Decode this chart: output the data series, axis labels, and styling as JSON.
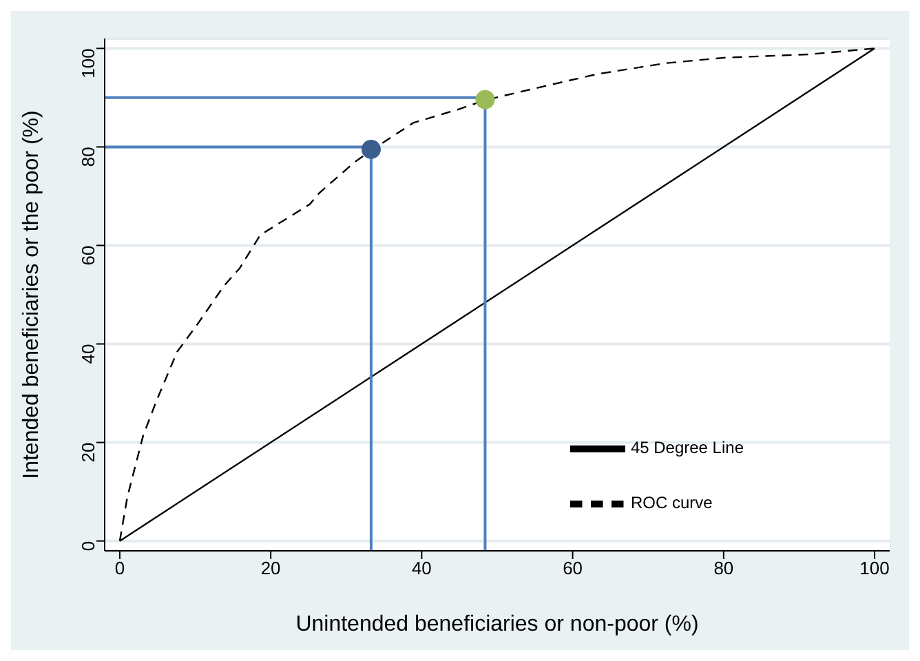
{
  "chart_data": {
    "type": "line",
    "xlabel": "Unintended beneficiaries or non-poor (%)",
    "ylabel": "Intended beneficiaries or the poor (%)",
    "xlim": [
      -2,
      102
    ],
    "ylim": [
      -2,
      102
    ],
    "xticks": [
      0,
      20,
      40,
      60,
      80,
      100
    ],
    "yticks": [
      0,
      20,
      40,
      60,
      80,
      100
    ],
    "grid": "y",
    "legend": "bottom right",
    "series": [
      {
        "name": "ROC curve",
        "color": "#000000",
        "line_style": "dashed",
        "x": [
          0,
          1,
          3.1,
          4.9,
          7.6,
          10.2,
          13.8,
          15.9,
          18.6,
          25.2,
          26.4,
          31.1,
          33.3,
          38.9,
          44.8,
          48.4,
          55.6,
          63.3,
          72.3,
          80,
          91.3,
          100
        ],
        "values": [
          0,
          8.9,
          21.4,
          28.6,
          38.4,
          43.8,
          51.8,
          55.4,
          62.1,
          68.4,
          70.6,
          76.9,
          79.3,
          84.9,
          87.6,
          89.5,
          92.1,
          94.8,
          97,
          98.1,
          98.8,
          100
        ]
      },
      {
        "name": "45 Degree Line",
        "color": "#000000",
        "line_style": "solid",
        "x": [
          0,
          100
        ],
        "values": [
          0,
          100
        ]
      },
      {
        "color": "#4f81bd",
        "line_style": "solid",
        "x": [
          -2,
          33.3
        ],
        "values": [
          80,
          80
        ]
      },
      {
        "color": "#4f81bd",
        "line_style": "solid",
        "x": [
          33.3,
          33.3
        ],
        "values": [
          80,
          -2
        ]
      },
      {
        "color": "#4f81bd",
        "line_style": "solid",
        "x": [
          -2,
          48.4
        ],
        "values": [
          90,
          90
        ]
      },
      {
        "color": "#4f81bd",
        "line_style": "solid",
        "x": [
          48.4,
          48.4
        ],
        "values": [
          90,
          -2
        ]
      },
      {
        "type": "scatter",
        "marker": "circle",
        "color": "#3a5f8f",
        "x": [
          33.3
        ],
        "values": [
          79.5
        ]
      },
      {
        "type": "scatter",
        "marker": "circle",
        "color": "#9bbb59",
        "x": [
          48.4
        ],
        "values": [
          89.6
        ]
      }
    ]
  }
}
